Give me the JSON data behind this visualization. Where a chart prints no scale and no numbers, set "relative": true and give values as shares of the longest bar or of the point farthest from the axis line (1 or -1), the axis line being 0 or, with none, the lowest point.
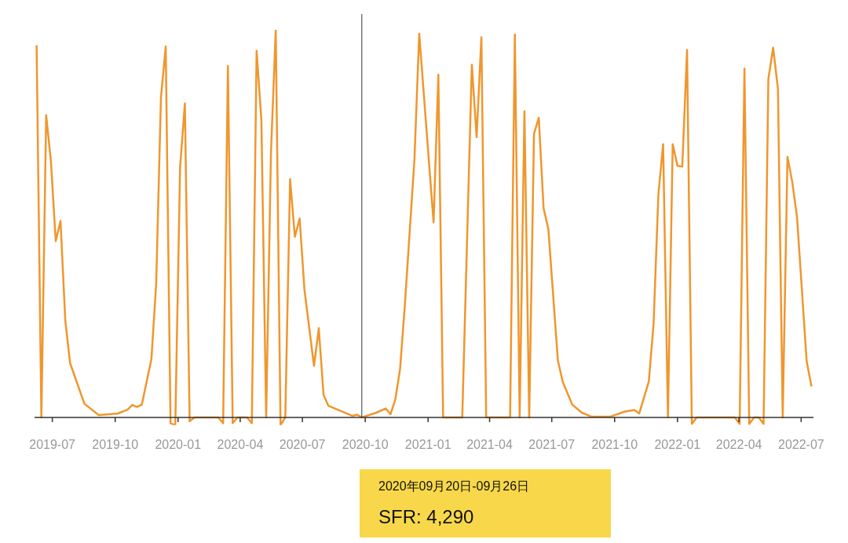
{
  "chart_data": {
    "type": "line",
    "relative": true,
    "legend": false,
    "marker": "none",
    "line_style": "solid",
    "xlim": [
      "2019-06-05",
      "2022-07-19"
    ],
    "xticks": [
      "2019-07",
      "2019-10",
      "2020-01",
      "2020-04",
      "2020-07",
      "2020-10",
      "2021-01",
      "2021-04",
      "2021-07",
      "2021-10",
      "2022-01",
      "2022-04",
      "2022-07"
    ],
    "x": [
      "2019-06-08",
      "2019-06-15",
      "2019-06-22",
      "2019-06-29",
      "2019-07-06",
      "2019-07-13",
      "2019-07-20",
      "2019-07-27",
      "2019-08-17",
      "2019-09-07",
      "2019-10-05",
      "2019-10-19",
      "2019-10-26",
      "2019-11-02",
      "2019-11-09",
      "2019-11-23",
      "2019-11-30",
      "2019-12-07",
      "2019-12-14",
      "2019-12-21",
      "2019-12-28",
      "2020-01-04",
      "2020-01-11",
      "2020-01-18",
      "2020-01-25",
      "2020-02-29",
      "2020-03-07",
      "2020-03-14",
      "2020-03-21",
      "2020-03-28",
      "2020-04-11",
      "2020-04-18",
      "2020-04-25",
      "2020-05-02",
      "2020-05-09",
      "2020-05-16",
      "2020-05-23",
      "2020-05-30",
      "2020-06-06",
      "2020-06-13",
      "2020-06-20",
      "2020-06-27",
      "2020-07-04",
      "2020-07-18",
      "2020-07-25",
      "2020-08-01",
      "2020-08-08",
      "2020-09-12",
      "2020-09-19",
      "2020-09-26",
      "2020-10-17",
      "2020-10-31",
      "2020-11-07",
      "2020-11-14",
      "2020-11-21",
      "2020-11-28",
      "2020-12-12",
      "2020-12-19",
      "2021-01-02",
      "2021-01-09",
      "2021-01-16",
      "2021-01-23",
      "2021-02-20",
      "2021-03-06",
      "2021-03-13",
      "2021-03-20",
      "2021-03-27",
      "2021-05-01",
      "2021-05-08",
      "2021-05-15",
      "2021-05-22",
      "2021-05-29",
      "2021-06-05",
      "2021-06-12",
      "2021-06-19",
      "2021-06-26",
      "2021-07-10",
      "2021-07-17",
      "2021-07-31",
      "2021-08-14",
      "2021-08-28",
      "2021-09-25",
      "2021-10-16",
      "2021-10-30",
      "2021-11-06",
      "2021-11-20",
      "2021-11-27",
      "2021-12-04",
      "2021-12-11",
      "2021-12-18",
      "2021-12-25",
      "2022-01-01",
      "2022-01-08",
      "2022-01-15",
      "2022-01-22",
      "2022-01-29",
      "2022-03-26",
      "2022-04-02",
      "2022-04-09",
      "2022-04-16",
      "2022-04-23",
      "2022-04-30",
      "2022-05-07",
      "2022-05-14",
      "2022-05-21",
      "2022-05-28",
      "2022-06-04",
      "2022-06-11",
      "2022-06-18",
      "2022-06-25",
      "2022-07-09",
      "2022-07-16"
    ],
    "series": [
      {
        "color": "#f0962e",
        "values": [
          0.96,
          0,
          0.78,
          0.66,
          0.455,
          0.507,
          0.25,
          0.14,
          0.035,
          0.006,
          0.01,
          0.02,
          0.032,
          0.027,
          0.033,
          0.15,
          0.344,
          0.825,
          0.957,
          -0.015,
          -0.02,
          0.645,
          0.81,
          -0.01,
          0,
          0,
          -0.015,
          0.907,
          -0.015,
          0,
          0,
          -0.015,
          0.946,
          0.767,
          0,
          0.682,
          1,
          -0.02,
          0,
          0.615,
          0.466,
          0.513,
          0.33,
          0.133,
          0.23,
          0.058,
          0.03,
          0.004,
          0.007,
          0,
          0.012,
          0.023,
          0.008,
          0.046,
          0.125,
          0.29,
          0.665,
          0.99,
          0.665,
          0.503,
          0.884,
          0,
          0,
          0.91,
          0.723,
          0.981,
          0,
          0,
          0.988,
          0,
          0.79,
          0,
          0.732,
          0.773,
          0.54,
          0.486,
          0.146,
          0.092,
          0.033,
          0.012,
          0.002,
          0.002,
          0.015,
          0.019,
          0.01,
          0.092,
          0.241,
          0.574,
          0.705,
          0,
          0.705,
          0.649,
          0.647,
          0.948,
          -0.017,
          0,
          0,
          -0.017,
          0.9,
          -0.017,
          0,
          0,
          -0.017,
          0.873,
          0.954,
          0.848,
          0,
          0.672,
          0.607,
          0.516,
          0.146,
          0.08
        ]
      }
    ],
    "ref_lines": [
      {
        "axis": "x",
        "value": "2020-09-26",
        "color": "#333333"
      }
    ],
    "annotations": [
      "2020年09月20日-09月26日",
      "SFR: 4,290"
    ]
  }
}
